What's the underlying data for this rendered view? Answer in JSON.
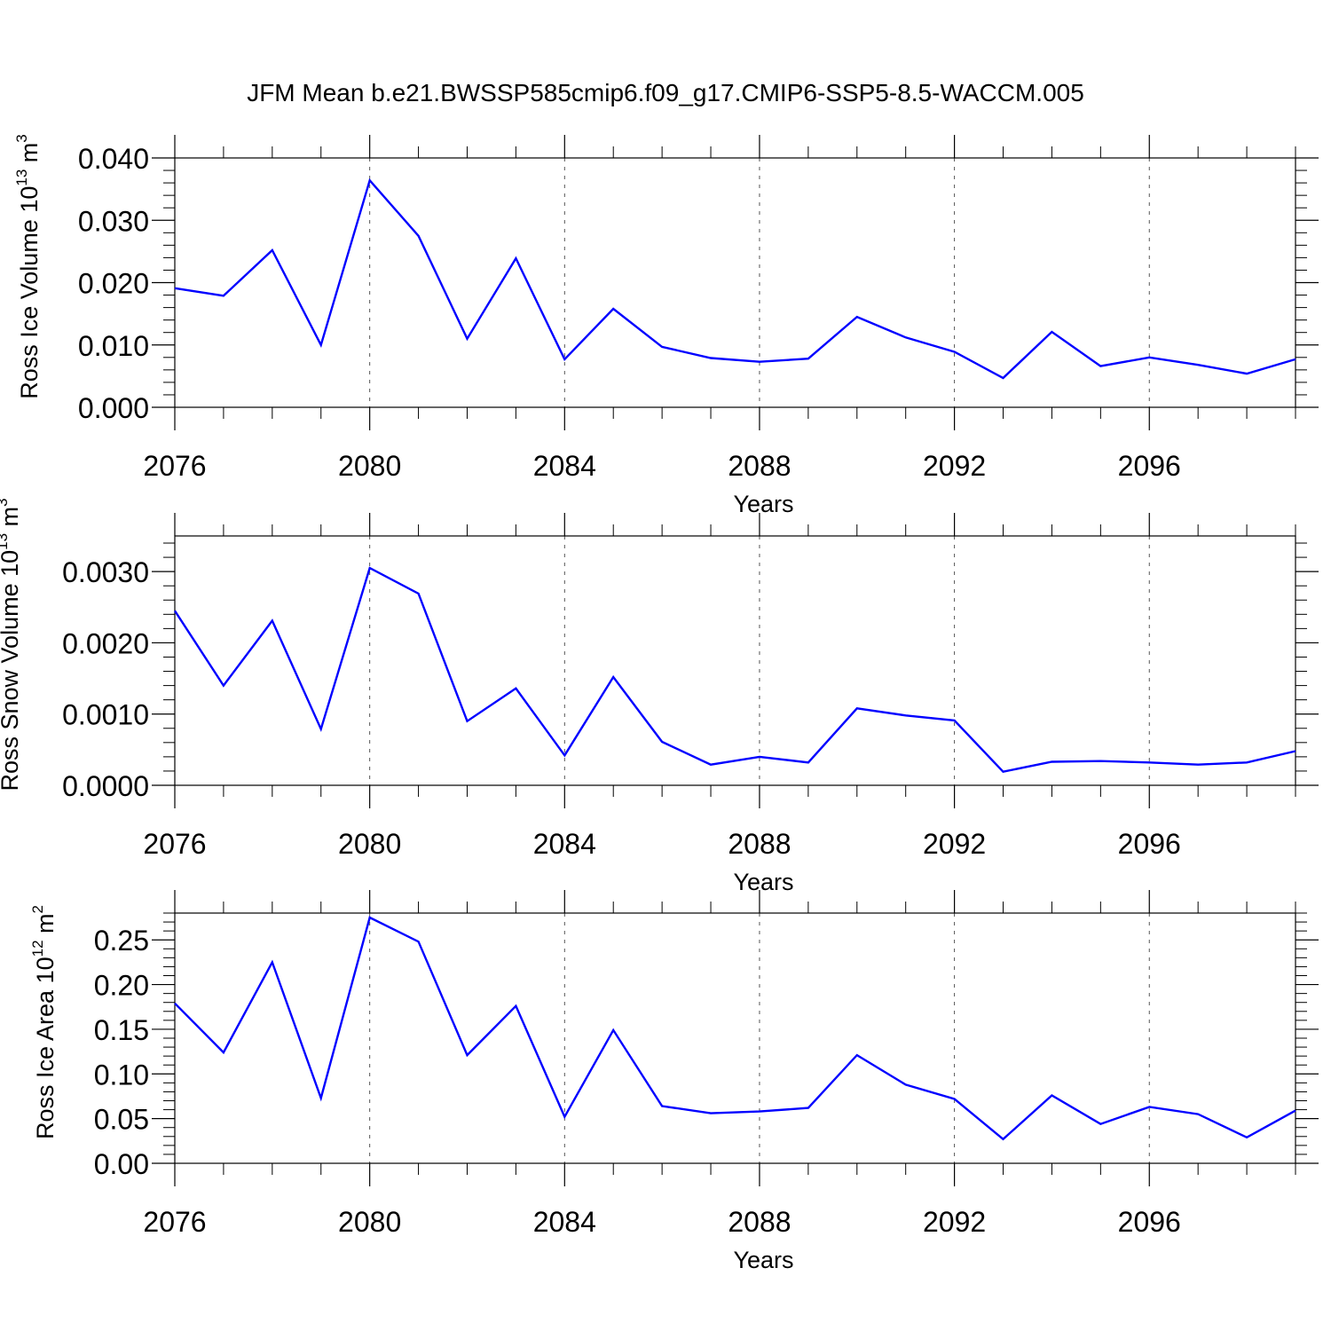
{
  "title": "JFM Mean b.e21.BWSSP585cmip6.f09_g17.CMIP6-SSP5-8.5-WACCM.005",
  "colors": {
    "series": "#0000ff",
    "axes": "#000000",
    "grid": "#555555"
  },
  "chart_data": [
    {
      "type": "line",
      "xlabel": "Years",
      "ylabel": {
        "main": "Ross Ice Volume 10",
        "exp": "13",
        "unit": " m",
        "unit_exp": "3"
      },
      "xlim": [
        2076,
        2099
      ],
      "ylim": [
        0.0,
        0.04
      ],
      "xticks": [
        "2076",
        "2080",
        "2084",
        "2088",
        "2092",
        "2096"
      ],
      "yticks": [
        "0.000",
        "0.010",
        "0.020",
        "0.030",
        "0.040"
      ],
      "grid": "dashed vertical at major x ticks",
      "x": [
        2076,
        2077,
        2078,
        2079,
        2080,
        2081,
        2082,
        2083,
        2084,
        2085,
        2086,
        2087,
        2088,
        2089,
        2090,
        2091,
        2092,
        2093,
        2094,
        2095,
        2096,
        2097,
        2098,
        2099
      ],
      "series": [
        {
          "values": [
            0.0191,
            0.0179,
            0.0252,
            0.01,
            0.0364,
            0.0275,
            0.011,
            0.0239,
            0.0077,
            0.0158,
            0.0097,
            0.0079,
            0.0073,
            0.0078,
            0.0145,
            0.0112,
            0.0089,
            0.0047,
            0.0121,
            0.0066,
            0.008,
            0.0068,
            0.0054,
            0.0077
          ]
        }
      ]
    },
    {
      "type": "line",
      "xlabel": "Years",
      "ylabel": {
        "main": "Ross Snow Volume 10",
        "exp": "13",
        "unit": " m",
        "unit_exp": "3"
      },
      "xlim": [
        2076,
        2099
      ],
      "ylim": [
        0.0,
        0.0035
      ],
      "xticks": [
        "2076",
        "2080",
        "2084",
        "2088",
        "2092",
        "2096"
      ],
      "yticks": [
        "0.0000",
        "0.0010",
        "0.0020",
        "0.0030"
      ],
      "grid": "dashed vertical at major x ticks",
      "x": [
        2076,
        2077,
        2078,
        2079,
        2080,
        2081,
        2082,
        2083,
        2084,
        2085,
        2086,
        2087,
        2088,
        2089,
        2090,
        2091,
        2092,
        2093,
        2094,
        2095,
        2096,
        2097,
        2098,
        2099
      ],
      "series": [
        {
          "values": [
            0.00245,
            0.0014,
            0.00231,
            0.00079,
            0.00305,
            0.00269,
            0.0009,
            0.00136,
            0.00042,
            0.00152,
            0.00061,
            0.00029,
            0.0004,
            0.00032,
            0.00108,
            0.00098,
            0.00091,
            0.00019,
            0.00033,
            0.00034,
            0.00032,
            0.00029,
            0.00032,
            0.00048
          ]
        }
      ]
    },
    {
      "type": "line",
      "xlabel": "Years",
      "ylabel": {
        "main": "Ross Ice Area 10",
        "exp": "12",
        "unit": " m",
        "unit_exp": "2"
      },
      "xlim": [
        2076,
        2099
      ],
      "ylim": [
        0.0,
        0.28
      ],
      "xticks": [
        "2076",
        "2080",
        "2084",
        "2088",
        "2092",
        "2096"
      ],
      "yticks": [
        "0.00",
        "0.05",
        "0.10",
        "0.15",
        "0.20",
        "0.25"
      ],
      "grid": "dashed vertical at major x ticks",
      "x": [
        2076,
        2077,
        2078,
        2079,
        2080,
        2081,
        2082,
        2083,
        2084,
        2085,
        2086,
        2087,
        2088,
        2089,
        2090,
        2091,
        2092,
        2093,
        2094,
        2095,
        2096,
        2097,
        2098,
        2099
      ],
      "series": [
        {
          "values": [
            0.179,
            0.124,
            0.225,
            0.073,
            0.275,
            0.248,
            0.121,
            0.176,
            0.052,
            0.149,
            0.064,
            0.056,
            0.058,
            0.062,
            0.121,
            0.088,
            0.072,
            0.027,
            0.076,
            0.044,
            0.063,
            0.055,
            0.029,
            0.059
          ]
        }
      ]
    }
  ]
}
